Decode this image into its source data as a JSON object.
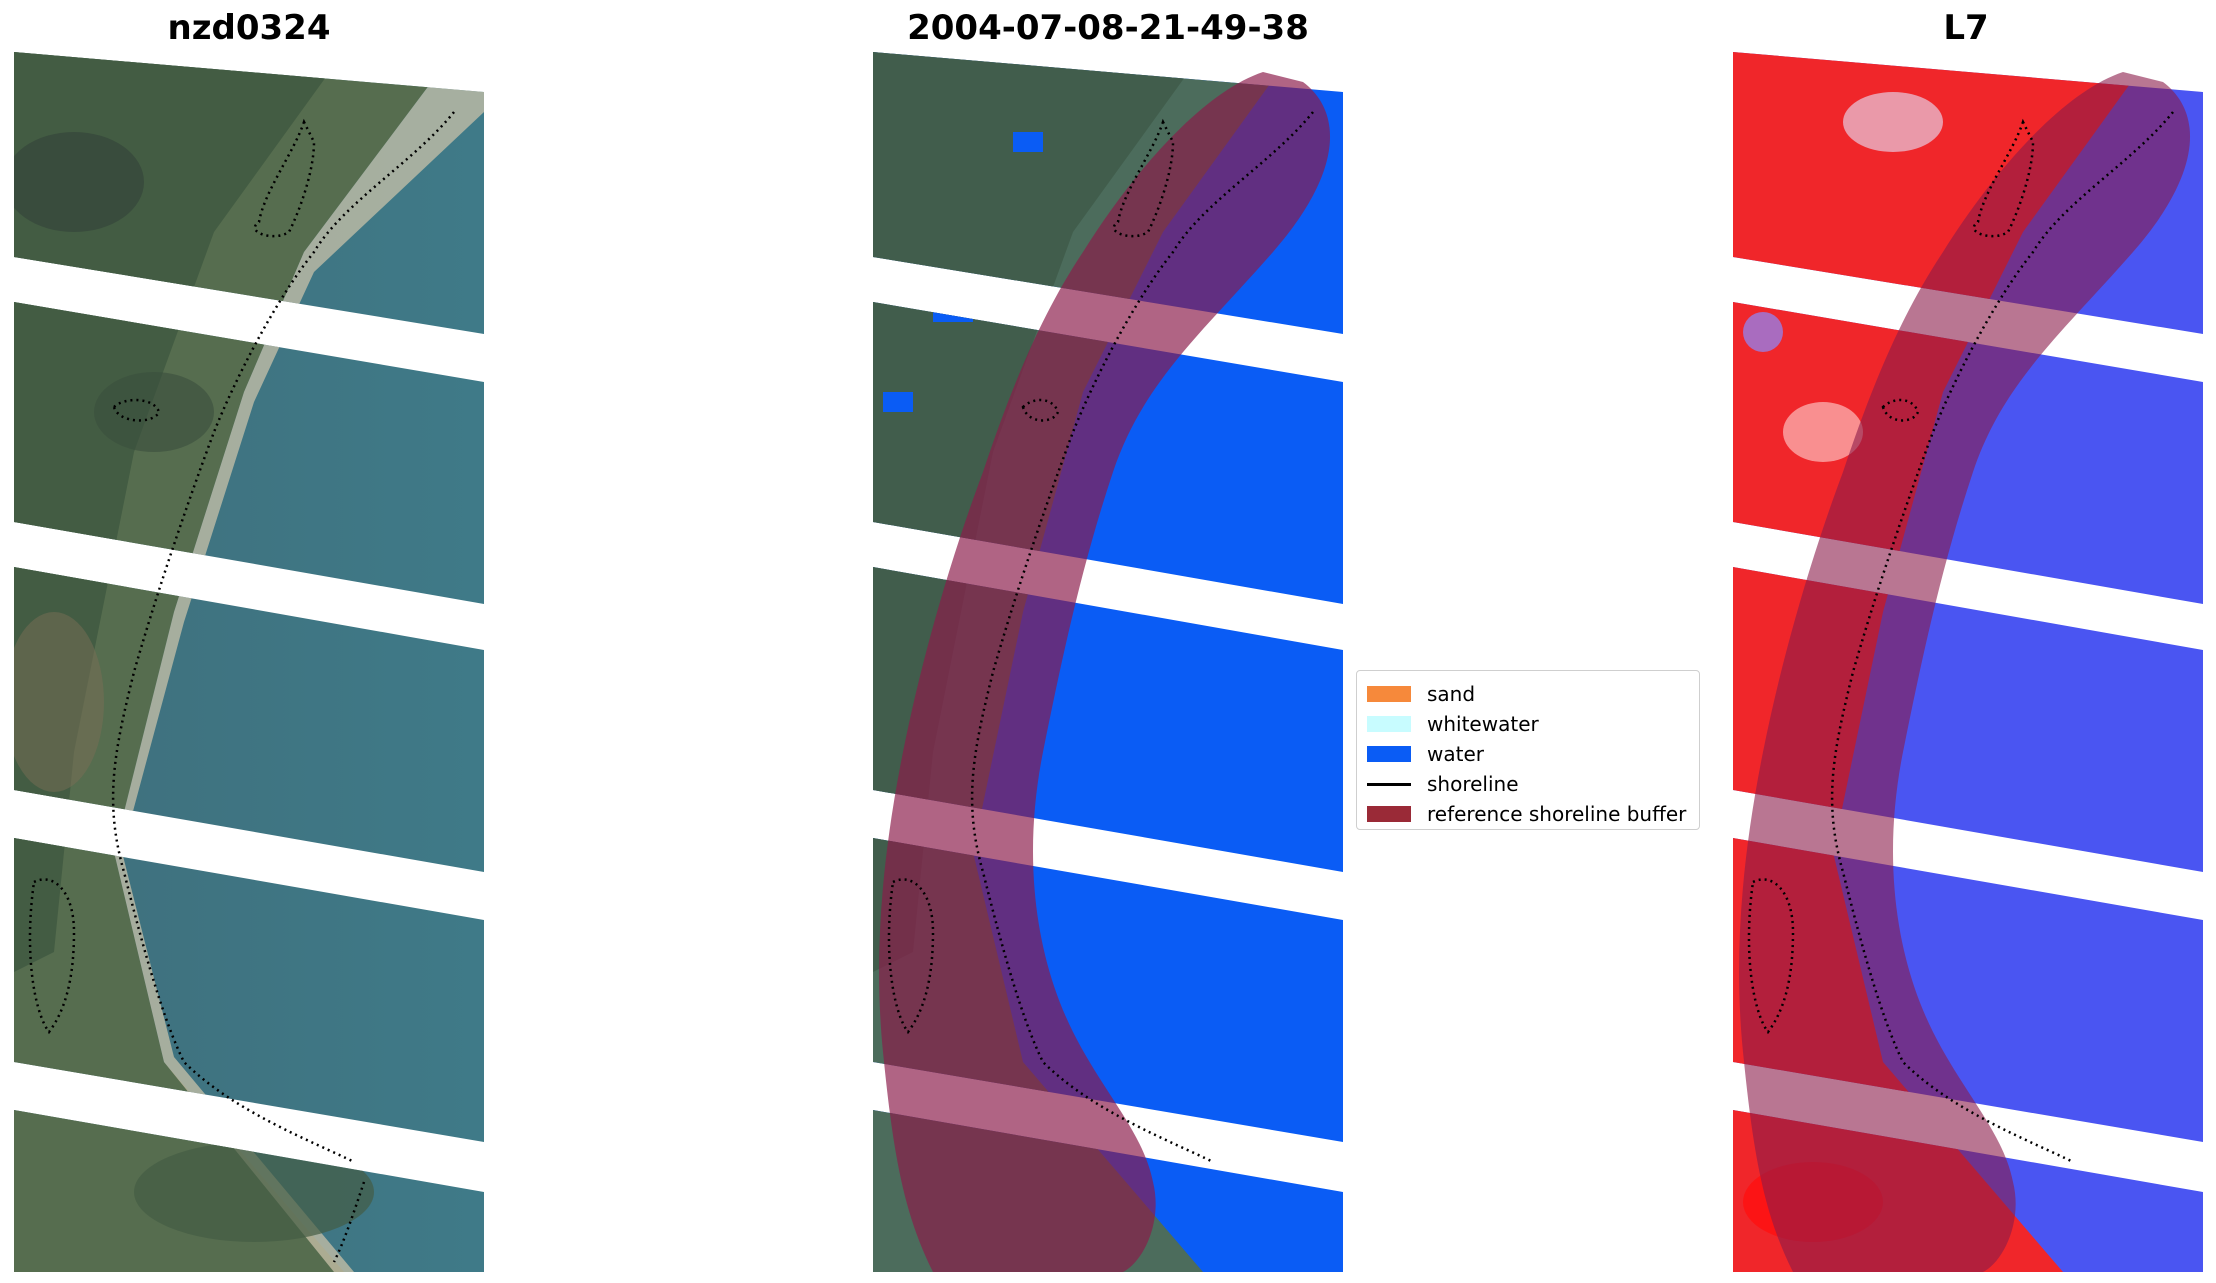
{
  "titles": {
    "left": "nzd0324",
    "middle": "2004-07-08-21-49-38",
    "right": "L7"
  },
  "legend": {
    "items": [
      {
        "label": "sand",
        "color": "#f6893b",
        "kind": "swatch"
      },
      {
        "label": "whitewater",
        "color": "#c8fcff",
        "kind": "swatch"
      },
      {
        "label": "water",
        "color": "#0a5cf5",
        "kind": "swatch"
      },
      {
        "label": "shoreline",
        "color": "#000000",
        "kind": "line"
      },
      {
        "label": "reference shoreline buffer",
        "color": "#9a2a37",
        "kind": "swatch"
      }
    ]
  },
  "colors": {
    "water_class": "#0a5cf5",
    "buffer": "#8b1a4a",
    "mndwi_land": "#ff2a2a",
    "mndwi_water": "#3c46ff",
    "rgb_sea": "#4a8294",
    "rgb_land": "#4f6a52"
  }
}
